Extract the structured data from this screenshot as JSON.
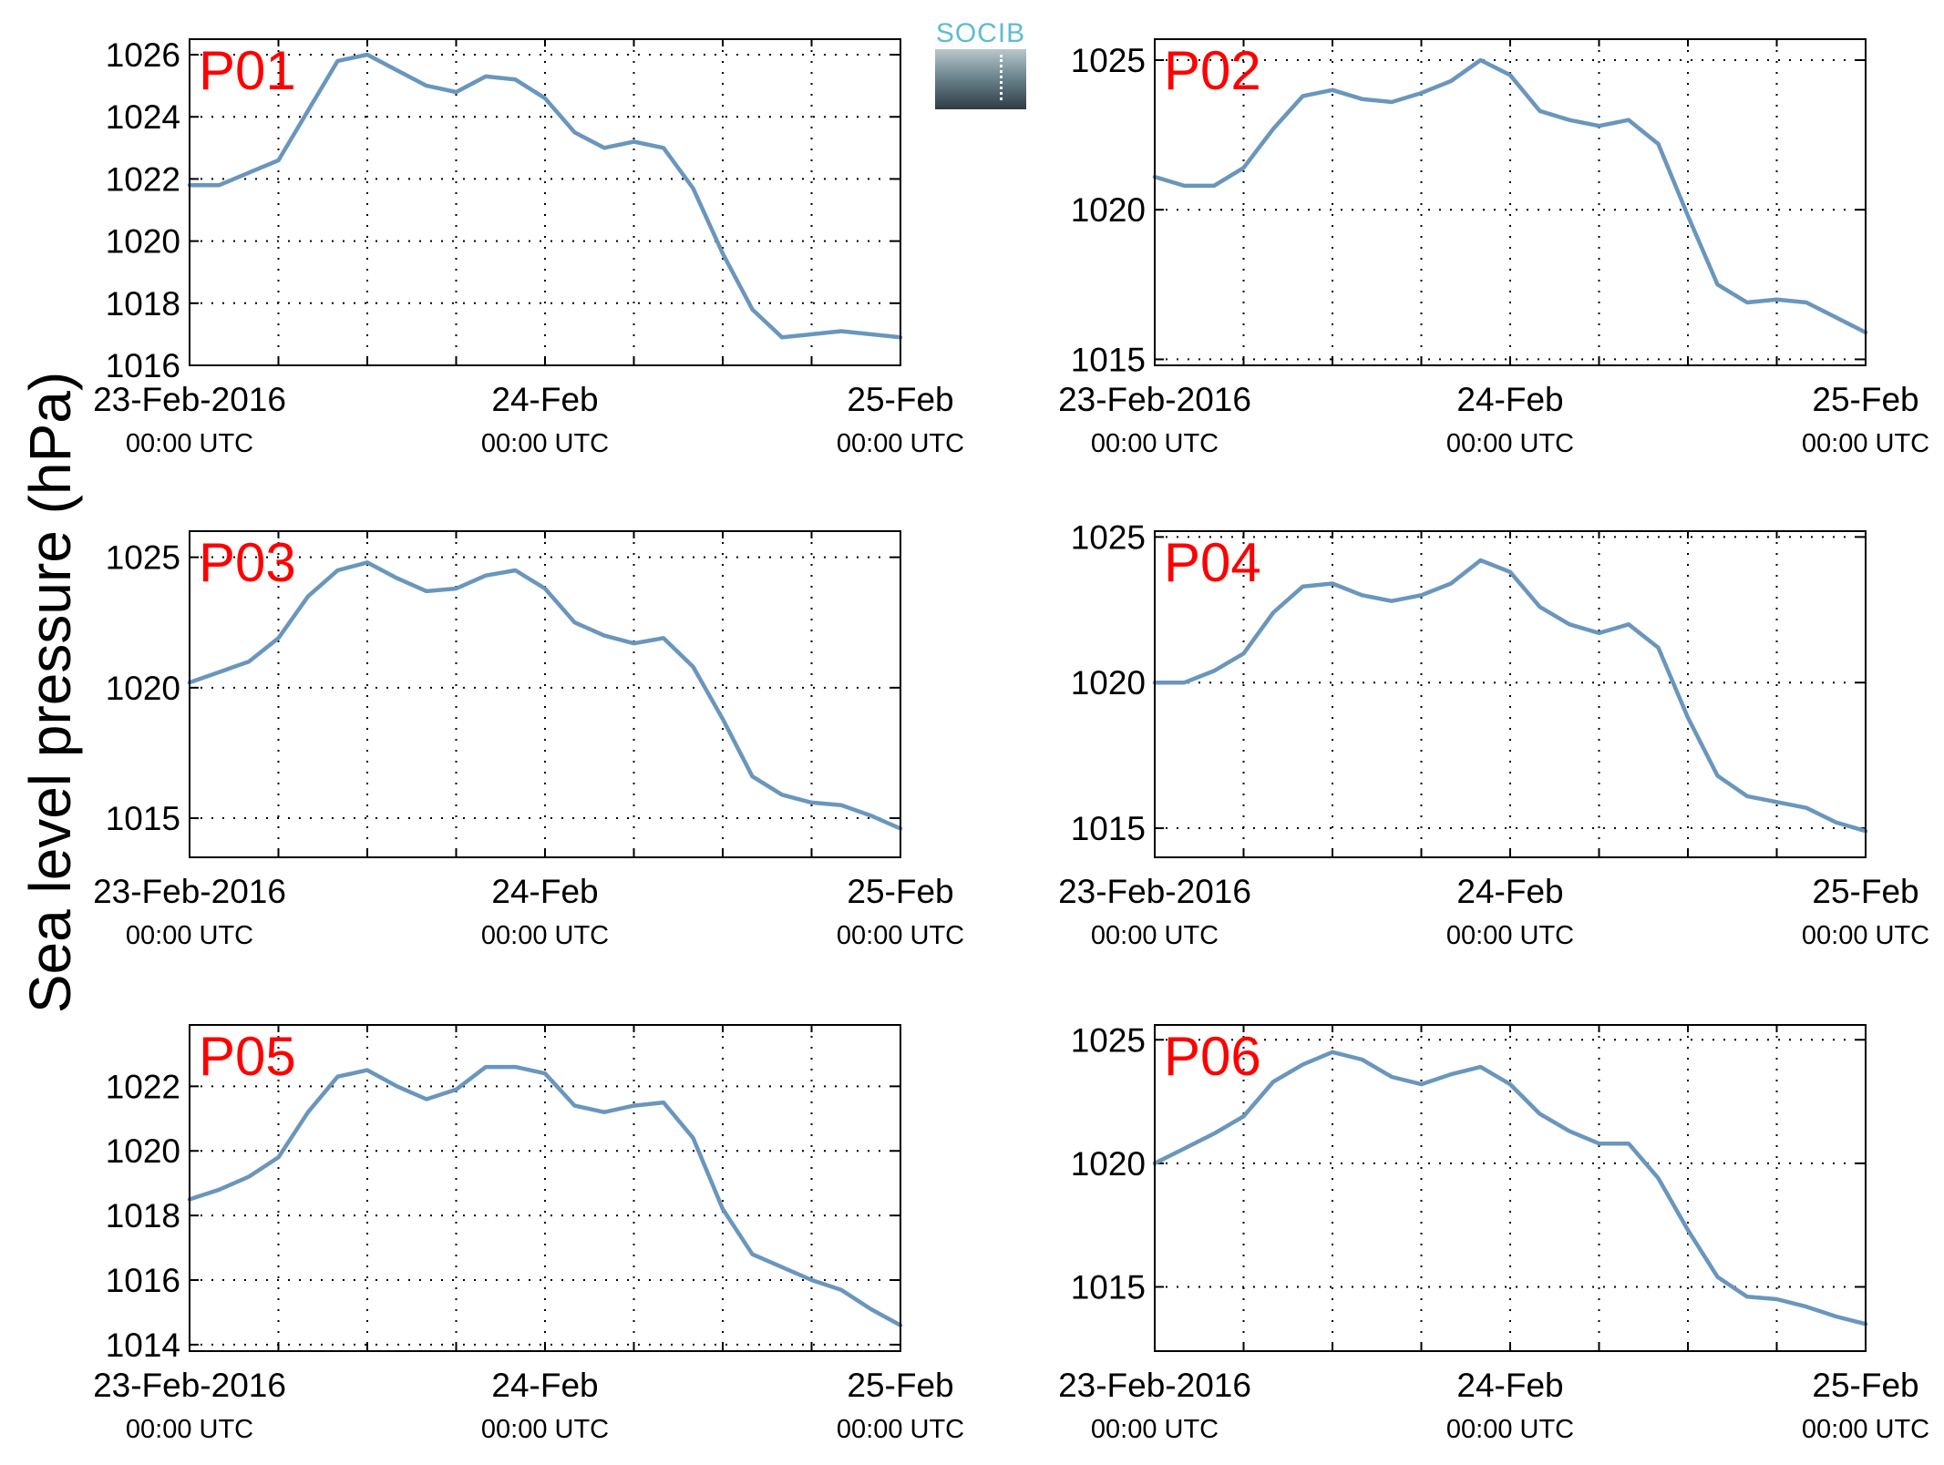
{
  "figure": {
    "ylabel": "Sea level pressure (hPa)",
    "logo_text": "SOCIB",
    "line_color": "#6a96bd",
    "panel_label_color": "#ff0000"
  },
  "chart_data": [
    {
      "type": "line",
      "label": "P01",
      "ylim": [
        1016,
        1026.5
      ],
      "yticks": [
        1016,
        1018,
        1020,
        1022,
        1024,
        1026
      ],
      "xlim": [
        "2016-02-23 00:00",
        "2016-02-25 00:00"
      ],
      "xticks": [
        {
          "line1": "23-Feb-2016",
          "line2": "00:00 UTC"
        },
        {
          "line1": "24-Feb",
          "line2": "00:00 UTC"
        },
        {
          "line1": "25-Feb",
          "line2": "00:00 UTC"
        }
      ],
      "grid": true,
      "x_hours": [
        0,
        2,
        4,
        6,
        8,
        10,
        12,
        14,
        16,
        18,
        20,
        22,
        24,
        26,
        28,
        30,
        32,
        34,
        36,
        38,
        40,
        42,
        44,
        46,
        48
      ],
      "y": [
        1021.8,
        1021.8,
        1022.2,
        1022.6,
        1024.2,
        1025.8,
        1026.0,
        1025.5,
        1025.0,
        1024.8,
        1025.3,
        1025.2,
        1024.6,
        1023.5,
        1023.0,
        1023.2,
        1023.0,
        1021.7,
        1019.6,
        1017.8,
        1016.9,
        1017.0,
        1017.1,
        1017.0,
        1016.9
      ]
    },
    {
      "type": "line",
      "label": "P02",
      "ylim": [
        1014.8,
        1025.7
      ],
      "yticks": [
        1015,
        1020,
        1025
      ],
      "xlim": [
        "2016-02-23 00:00",
        "2016-02-25 00:00"
      ],
      "xticks": [
        {
          "line1": "23-Feb-2016",
          "line2": "00:00 UTC"
        },
        {
          "line1": "24-Feb",
          "line2": "00:00 UTC"
        },
        {
          "line1": "25-Feb",
          "line2": "00:00 UTC"
        }
      ],
      "grid": true,
      "x_hours": [
        0,
        2,
        4,
        6,
        8,
        10,
        12,
        14,
        16,
        18,
        20,
        22,
        24,
        26,
        28,
        30,
        32,
        34,
        36,
        38,
        40,
        42,
        44,
        46,
        48
      ],
      "y": [
        1021.1,
        1020.8,
        1020.8,
        1021.4,
        1022.7,
        1023.8,
        1024.0,
        1023.7,
        1023.6,
        1023.9,
        1024.3,
        1025.0,
        1024.5,
        1023.3,
        1023.0,
        1022.8,
        1023.0,
        1022.2,
        1019.8,
        1017.5,
        1016.9,
        1017.0,
        1016.9,
        1016.4,
        1015.9
      ]
    },
    {
      "type": "line",
      "label": "P03",
      "ylim": [
        1013.5,
        1026
      ],
      "yticks": [
        1015,
        1020,
        1025
      ],
      "xlim": [
        "2016-02-23 00:00",
        "2016-02-25 00:00"
      ],
      "xticks": [
        {
          "line1": "23-Feb-2016",
          "line2": "00:00 UTC"
        },
        {
          "line1": "24-Feb",
          "line2": "00:00 UTC"
        },
        {
          "line1": "25-Feb",
          "line2": "00:00 UTC"
        }
      ],
      "grid": true,
      "x_hours": [
        0,
        2,
        4,
        6,
        8,
        10,
        12,
        14,
        16,
        18,
        20,
        22,
        24,
        26,
        28,
        30,
        32,
        34,
        36,
        38,
        40,
        42,
        44,
        46,
        48
      ],
      "y": [
        1020.2,
        1020.6,
        1021.0,
        1021.9,
        1023.5,
        1024.5,
        1024.8,
        1024.2,
        1023.7,
        1023.8,
        1024.3,
        1024.5,
        1023.8,
        1022.5,
        1022.0,
        1021.7,
        1021.9,
        1020.8,
        1018.8,
        1016.6,
        1015.9,
        1015.6,
        1015.5,
        1015.1,
        1014.6
      ]
    },
    {
      "type": "line",
      "label": "P04",
      "ylim": [
        1014,
        1025.2
      ],
      "yticks": [
        1015,
        1020,
        1025
      ],
      "xlim": [
        "2016-02-23 00:00",
        "2016-02-25 00:00"
      ],
      "xticks": [
        {
          "line1": "23-Feb-2016",
          "line2": "00:00 UTC"
        },
        {
          "line1": "24-Feb",
          "line2": "00:00 UTC"
        },
        {
          "line1": "25-Feb",
          "line2": "00:00 UTC"
        }
      ],
      "grid": true,
      "x_hours": [
        0,
        2,
        4,
        6,
        8,
        10,
        12,
        14,
        16,
        18,
        20,
        22,
        24,
        26,
        28,
        30,
        32,
        34,
        36,
        38,
        40,
        42,
        44,
        46,
        48
      ],
      "y": [
        1020.0,
        1020.0,
        1020.4,
        1021.0,
        1022.4,
        1023.3,
        1023.4,
        1023.0,
        1022.8,
        1023.0,
        1023.4,
        1024.2,
        1023.8,
        1022.6,
        1022.0,
        1021.7,
        1022.0,
        1021.2,
        1018.8,
        1016.8,
        1016.1,
        1015.9,
        1015.7,
        1015.2,
        1014.9
      ]
    },
    {
      "type": "line",
      "label": "P05",
      "ylim": [
        1013.8,
        1023.9
      ],
      "yticks": [
        1014,
        1016,
        1018,
        1020,
        1022
      ],
      "xlim": [
        "2016-02-23 00:00",
        "2016-02-25 00:00"
      ],
      "xticks": [
        {
          "line1": "23-Feb-2016",
          "line2": "00:00 UTC"
        },
        {
          "line1": "24-Feb",
          "line2": "00:00 UTC"
        },
        {
          "line1": "25-Feb",
          "line2": "00:00 UTC"
        }
      ],
      "grid": true,
      "x_hours": [
        0,
        2,
        4,
        6,
        8,
        10,
        12,
        14,
        16,
        18,
        20,
        22,
        24,
        26,
        28,
        30,
        32,
        34,
        36,
        38,
        40,
        42,
        44,
        46,
        48
      ],
      "y": [
        1018.5,
        1018.8,
        1019.2,
        1019.8,
        1021.2,
        1022.3,
        1022.5,
        1022.0,
        1021.6,
        1021.9,
        1022.6,
        1022.6,
        1022.4,
        1021.4,
        1021.2,
        1021.4,
        1021.5,
        1020.4,
        1018.2,
        1016.8,
        1016.4,
        1016.0,
        1015.7,
        1015.1,
        1014.6
      ]
    },
    {
      "type": "line",
      "label": "P06",
      "ylim": [
        1012.4,
        1025.6
      ],
      "yticks": [
        1015,
        1020,
        1025
      ],
      "xlim": [
        "2016-02-23 00:00",
        "2016-02-25 00:00"
      ],
      "xticks": [
        {
          "line1": "23-Feb-2016",
          "line2": "00:00 UTC"
        },
        {
          "line1": "24-Feb",
          "line2": "00:00 UTC"
        },
        {
          "line1": "25-Feb",
          "line2": "00:00 UTC"
        }
      ],
      "grid": true,
      "x_hours": [
        0,
        2,
        4,
        6,
        8,
        10,
        12,
        14,
        16,
        18,
        20,
        22,
        24,
        26,
        28,
        30,
        32,
        34,
        36,
        38,
        40,
        42,
        44,
        46,
        48
      ],
      "y": [
        1020.0,
        1020.6,
        1021.2,
        1021.9,
        1023.3,
        1024.0,
        1024.5,
        1024.2,
        1023.5,
        1023.2,
        1023.6,
        1023.9,
        1023.2,
        1022.0,
        1021.3,
        1020.8,
        1020.8,
        1019.4,
        1017.3,
        1015.4,
        1014.6,
        1014.5,
        1014.2,
        1013.8,
        1013.5
      ]
    }
  ]
}
